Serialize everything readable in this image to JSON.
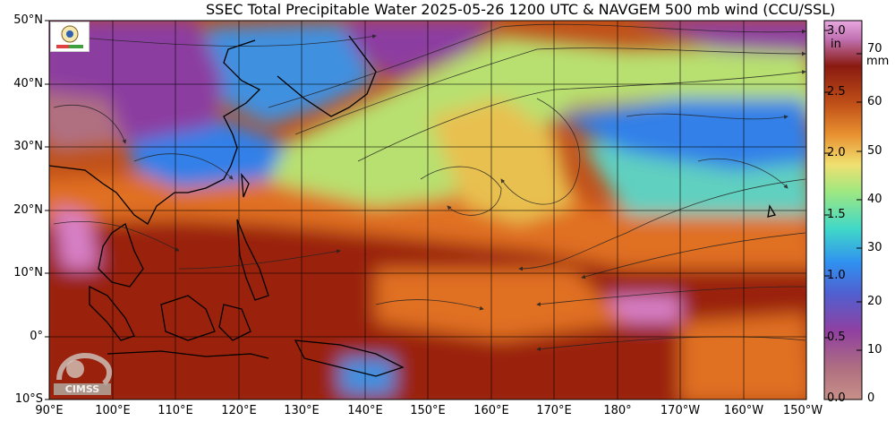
{
  "title": "SSEC Total Precipitable Water  2025-05-26 1200 UTC & NAVGEM 500 mb wind (CCU/SSL)",
  "lat_labels": [
    "50°N",
    "40°N",
    "30°N",
    "20°N",
    "10°N",
    "0°",
    "10°S"
  ],
  "lon_labels": [
    "90°E",
    "100°E",
    "110°E",
    "120°E",
    "130°E",
    "140°E",
    "150°E",
    "160°E",
    "170°E",
    "180°",
    "170°W",
    "160°W",
    "150°W"
  ],
  "colorbar": {
    "unit_in": "in",
    "unit_mm": "mm",
    "in_labels": [
      "3.0",
      "2.5",
      "2.0",
      "1.5",
      "1.0",
      "0.5",
      "0.0"
    ],
    "mm_labels": [
      "70",
      "60",
      "50",
      "40",
      "30",
      "20",
      "10",
      "0"
    ],
    "colors": [
      "#b07080",
      "#9040a0",
      "#3090f0",
      "#40d8c8",
      "#f0e070",
      "#e07020",
      "#9a2010",
      "#e090d0"
    ]
  },
  "logos": {
    "ssec": "SSEC",
    "cimss": "CIMSS"
  }
}
